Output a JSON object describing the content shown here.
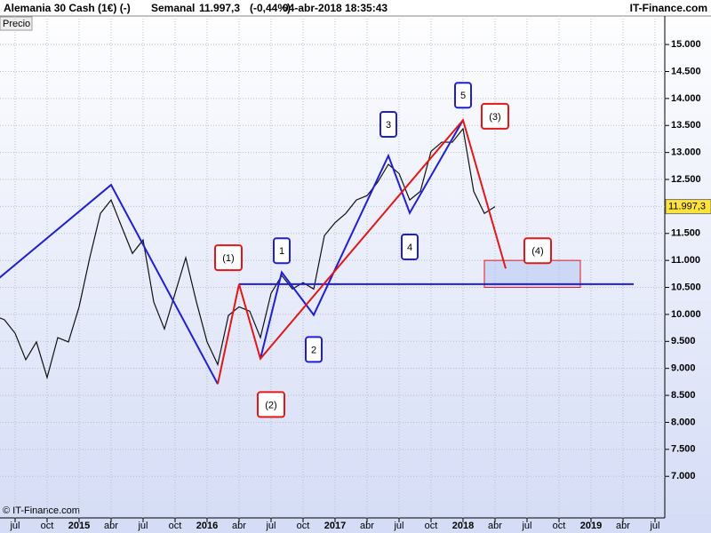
{
  "header": {
    "instrument": "Alemania 30 Cash (1€) (-)",
    "period": "Semanal",
    "change": "(-0,44%)",
    "datetime": "04-abr-2018 18:35:43",
    "brand": "IT-Finance.com",
    "series_label": "Precio",
    "footer": "© IT-Finance.com"
  },
  "chart_data": {
    "type": "line",
    "last_price": {
      "value": 11997.3,
      "label": "11.997,3"
    },
    "xlim": [
      "2014-05",
      "2019-08"
    ],
    "ylim": [
      6230,
      15660
    ],
    "yticks": [
      {
        "value": 7000,
        "label": "7.000"
      },
      {
        "value": 7500,
        "label": "7.500"
      },
      {
        "value": 8000,
        "label": "8.000"
      },
      {
        "value": 8500,
        "label": "8.500"
      },
      {
        "value": 9000,
        "label": "9.000"
      },
      {
        "value": 9500,
        "label": "9.500"
      },
      {
        "value": 10000,
        "label": "10.000"
      },
      {
        "value": 10500,
        "label": "10.500"
      },
      {
        "value": 11000,
        "label": "11.000"
      },
      {
        "value": 11500,
        "label": "11.500"
      },
      {
        "value": 12000,
        "label": "12.000"
      },
      {
        "value": 12500,
        "label": "12.500"
      },
      {
        "value": 13000,
        "label": "13.000"
      },
      {
        "value": 13500,
        "label": "13.500"
      },
      {
        "value": 14000,
        "label": "14.000"
      },
      {
        "value": 14500,
        "label": "14.500"
      },
      {
        "value": 15000,
        "label": "15.000"
      }
    ],
    "xticks": [
      {
        "value": "2014-07",
        "label": "jul"
      },
      {
        "value": "2014-10",
        "label": "oct"
      },
      {
        "value": "2015-01",
        "label": "2015"
      },
      {
        "value": "2015-04",
        "label": "abr"
      },
      {
        "value": "2015-07",
        "label": "jul"
      },
      {
        "value": "2015-10",
        "label": "oct"
      },
      {
        "value": "2016-01",
        "label": "2016"
      },
      {
        "value": "2016-04",
        "label": "abr"
      },
      {
        "value": "2016-07",
        "label": "jul"
      },
      {
        "value": "2016-10",
        "label": "oct"
      },
      {
        "value": "2017-01",
        "label": "2017"
      },
      {
        "value": "2017-04",
        "label": "abr"
      },
      {
        "value": "2017-07",
        "label": "jul"
      },
      {
        "value": "2017-10",
        "label": "oct"
      },
      {
        "value": "2018-01",
        "label": "2018"
      },
      {
        "value": "2018-04",
        "label": "abr"
      },
      {
        "value": "2018-07",
        "label": "jul"
      },
      {
        "value": "2018-10",
        "label": "oct"
      },
      {
        "value": "2019-01",
        "label": "2019"
      },
      {
        "value": "2019-04",
        "label": "abr"
      },
      {
        "value": "2019-07",
        "label": "jul"
      }
    ],
    "grid": true,
    "series": [
      {
        "name": "Precio",
        "color": "#111111",
        "x": [
          "2014-05",
          "2014-06",
          "2014-07",
          "2014-08",
          "2014-09",
          "2014-10",
          "2014-11",
          "2014-12",
          "2015-01",
          "2015-02",
          "2015-03",
          "2015-04",
          "2015-05",
          "2015-06",
          "2015-07",
          "2015-08",
          "2015-09",
          "2015-10",
          "2015-11",
          "2015-12",
          "2016-01",
          "2016-02",
          "2016-03",
          "2016-04",
          "2016-05",
          "2016-06",
          "2016-07",
          "2016-08",
          "2016-09",
          "2016-10",
          "2016-11",
          "2016-12",
          "2017-01",
          "2017-02",
          "2017-03",
          "2017-04",
          "2017-05",
          "2017-06",
          "2017-07",
          "2017-08",
          "2017-09",
          "2017-10",
          "2017-11",
          "2017-12",
          "2018-01",
          "2018-02",
          "2018-03",
          "2018-04"
        ],
        "values": [
          9980,
          9900,
          9650,
          9160,
          9490,
          8830,
          9570,
          9490,
          10140,
          11050,
          11870,
          12120,
          11620,
          11130,
          11380,
          10230,
          9730,
          10390,
          11050,
          10230,
          9490,
          9070,
          9980,
          10140,
          10060,
          9570,
          10390,
          10720,
          10470,
          10590,
          10470,
          11460,
          11700,
          11870,
          12120,
          12200,
          12450,
          12780,
          12610,
          12120,
          12280,
          13020,
          13190,
          13190,
          13440,
          12280,
          11870,
          11997
        ]
      },
      {
        "color": "#1f1fd0",
        "x": [
          "2014-05",
          "2015-04",
          "2016-02"
        ],
        "values": [
          10590,
          12400,
          8710
        ]
      },
      {
        "color": "#1f1fd0",
        "x": [
          "2016-06",
          "2016-08",
          "2016-11",
          "2017-06",
          "2017-08",
          "2018-01"
        ],
        "values": [
          9180,
          10780,
          9990,
          12940,
          11880,
          13600
        ]
      },
      {
        "color": "#1f1fd0",
        "x": [
          "2016-04",
          "2019-05"
        ],
        "values": [
          10560,
          10560
        ]
      },
      {
        "color": "#e01818",
        "x": [
          "2016-02",
          "2016-04",
          "2016-06",
          "2018-01",
          "2018-05"
        ],
        "values": [
          8710,
          10560,
          9180,
          13600,
          10850
        ]
      }
    ],
    "target_zone": {
      "x": [
        "2018-03",
        "2018-12"
      ],
      "y": [
        10500,
        11000
      ],
      "color": "#e01818"
    },
    "annotations": [
      {
        "text": "1",
        "x": "2016-08",
        "y": 11180,
        "color": "#1f1fd0"
      },
      {
        "text": "2",
        "x": "2016-11",
        "y": 9350,
        "color": "#1f1fd0"
      },
      {
        "text": "3",
        "x": "2017-06",
        "y": 13520,
        "color": "#1f1fd0"
      },
      {
        "text": "4",
        "x": "2017-08",
        "y": 11250,
        "color": "#1f1fd0"
      },
      {
        "text": "5",
        "x": "2018-01",
        "y": 14060,
        "color": "#1f1fd0"
      },
      {
        "text": "(1)",
        "x": "2016-03",
        "y": 11050,
        "color": "#e01818"
      },
      {
        "text": "(2)",
        "x": "2016-07",
        "y": 8330,
        "color": "#e01818"
      },
      {
        "text": "(3)",
        "x": "2018-04",
        "y": 13670,
        "color": "#e01818"
      },
      {
        "text": "(4)",
        "x": "2018-08",
        "y": 11180,
        "color": "#e01818"
      }
    ]
  }
}
